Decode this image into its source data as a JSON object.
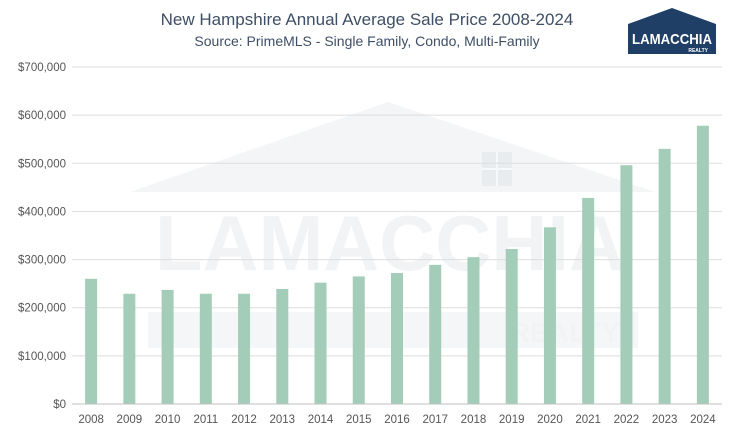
{
  "logo": {
    "name": "LAMACCHIA",
    "sub": "REALTY",
    "color": "#1f3f66"
  },
  "watermark": {
    "name": "LAMACCHIA",
    "sub": "REALTY"
  },
  "chart_data": {
    "type": "bar",
    "title": "New Hampshire Annual Average Sale Price 2008-2024",
    "subtitle": "Source: PrimeMLS - Single Family, Condo, Multi-Family",
    "xlabel": "",
    "ylabel": "",
    "categories": [
      "2008",
      "2009",
      "2010",
      "2011",
      "2012",
      "2013",
      "2014",
      "2015",
      "2016",
      "2017",
      "2018",
      "2019",
      "2020",
      "2021",
      "2022",
      "2023",
      "2024"
    ],
    "values": [
      260000,
      229000,
      237000,
      229000,
      229000,
      239000,
      252000,
      265000,
      272000,
      289000,
      305000,
      322000,
      367000,
      428000,
      496000,
      530000,
      578000
    ],
    "ylim": [
      0,
      700000
    ],
    "yticks": [
      0,
      100000,
      200000,
      300000,
      400000,
      500000,
      600000,
      700000
    ],
    "ytick_labels": [
      "$0",
      "$100,000",
      "$200,000",
      "$300,000",
      "$400,000",
      "$500,000",
      "$600,000",
      "$700,000"
    ],
    "grid": true,
    "legend": "none",
    "bar_color": "#a3cdb8",
    "grid_color": "#dddddd"
  }
}
